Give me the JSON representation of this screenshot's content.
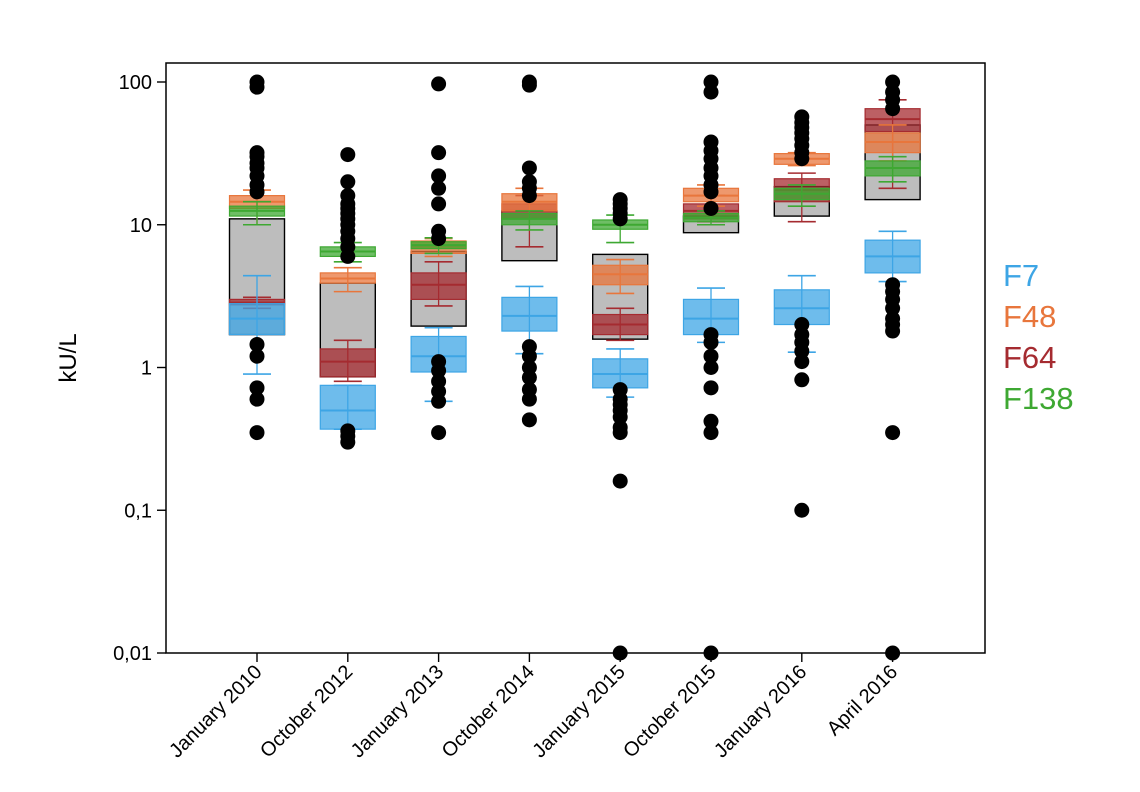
{
  "chart_data": {
    "type": "box",
    "ylabel": "kU/L",
    "xlabel": "",
    "yscale": "log",
    "ylim": [
      0.01,
      130
    ],
    "yticks": [
      0.01,
      0.1,
      1,
      10,
      100
    ],
    "ytick_labels": [
      "0,01",
      "0,1",
      "1",
      "10",
      "100"
    ],
    "categories": [
      "January 2010",
      "October 2012",
      "January 2013",
      "October 2014",
      "January 2015",
      "October 2015",
      "January 2016",
      "April 2016"
    ],
    "legend_position": "right",
    "total": {
      "whisker_low": [
        null,
        null,
        null,
        null,
        null,
        null,
        null,
        null
      ],
      "q1": [
        1.7,
        0.86,
        1.95,
        5.6,
        1.58,
        8.8,
        11.5,
        15
      ],
      "median": [
        null,
        null,
        null,
        null,
        null,
        null,
        null,
        null
      ],
      "q3": [
        11,
        3.9,
        6.5,
        12.5,
        6.2,
        11.5,
        18.5,
        50
      ],
      "whisker_high": [
        null,
        null,
        null,
        null,
        null,
        null,
        null,
        null
      ],
      "outliers": [
        [
          0.35,
          0.6,
          0.72,
          1.2,
          1.45,
          17,
          19,
          22,
          25,
          27,
          30,
          32,
          92,
          100
        ],
        [
          0.3,
          0.33,
          0.36,
          6,
          7,
          8,
          9,
          10,
          11,
          12,
          13,
          14,
          16,
          20,
          31
        ],
        [
          0.35,
          0.58,
          0.68,
          0.8,
          0.95,
          1.1,
          8,
          9,
          14,
          18,
          22,
          32,
          97
        ],
        [
          0.43,
          0.6,
          0.7,
          0.85,
          1,
          1.2,
          1.4,
          16,
          18,
          20,
          25,
          95,
          100
        ],
        [
          0.01,
          0.16,
          0.35,
          0.38,
          0.45,
          0.5,
          0.55,
          0.6,
          0.7,
          11,
          12,
          13,
          14,
          15
        ],
        [
          0.01,
          0.35,
          0.42,
          0.72,
          1,
          1.2,
          1.5,
          1.7,
          13,
          17,
          19,
          22,
          25,
          29,
          33,
          38,
          85,
          100
        ],
        [
          0.1,
          0.82,
          1.1,
          1.3,
          1.5,
          1.7,
          2,
          29,
          32,
          36,
          40,
          44,
          48,
          52,
          57
        ],
        [
          0.01,
          0.35,
          1.8,
          2,
          2.2,
          2.6,
          3,
          3.4,
          3.8,
          65,
          75,
          85,
          100
        ]
      ]
    },
    "series": [
      {
        "name": "F7",
        "color": "#3da5e5",
        "q1": [
          1.7,
          0.37,
          0.93,
          1.8,
          0.72,
          1.7,
          2,
          4.6
        ],
        "median": [
          2.2,
          0.5,
          1.2,
          2.3,
          0.9,
          2.2,
          2.6,
          6
        ],
        "q3": [
          2.8,
          0.75,
          1.65,
          3.1,
          1.15,
          3,
          3.5,
          7.8
        ],
        "whisker_low": [
          0.9,
          0.37,
          0.58,
          1.25,
          0.62,
          1.5,
          1.28,
          4
        ],
        "whisker_high": [
          4.4,
          0.75,
          1.9,
          3.7,
          1.35,
          3.6,
          4.4,
          9
        ]
      },
      {
        "name": "F48",
        "color": "#e8763c",
        "q1": [
          13,
          3.9,
          6.3,
          12.5,
          3.8,
          14.5,
          26.5,
          32
        ],
        "median": [
          14.5,
          4.2,
          7,
          14.5,
          4.5,
          16,
          29,
          38
        ],
        "q3": [
          16,
          4.6,
          7.7,
          16.5,
          5.2,
          18,
          31.5,
          44
        ],
        "whisker_low": [
          10,
          3.4,
          6,
          11,
          3.3,
          13.5,
          26,
          28
        ],
        "whisker_high": [
          17.5,
          5,
          8,
          18,
          5.7,
          19,
          32,
          50
        ]
      },
      {
        "name": "F64",
        "color": "#a52b30",
        "q1": [
          2.75,
          0.86,
          3,
          11,
          1.7,
          11,
          14.5,
          45
        ],
        "median": [
          2.85,
          1.1,
          3.8,
          12.5,
          2,
          12.5,
          17.5,
          55
        ],
        "q3": [
          3,
          1.35,
          4.6,
          14,
          2.35,
          14,
          21,
          65
        ],
        "whisker_low": [
          2.6,
          0.8,
          2.7,
          7,
          1.55,
          10.5,
          10.5,
          18
        ],
        "whisker_high": [
          3.1,
          1.55,
          5.5,
          16,
          2.6,
          16,
          23,
          75
        ]
      },
      {
        "name": "F138",
        "color": "#3ea832",
        "q1": [
          11.5,
          6,
          6.8,
          10,
          9.3,
          10.5,
          15,
          22
        ],
        "median": [
          12.5,
          6.5,
          7.2,
          11,
          10,
          11.2,
          16.5,
          25
        ],
        "q3": [
          13.5,
          7,
          7.6,
          12,
          10.8,
          12,
          18,
          28
        ],
        "whisker_low": [
          10,
          5.5,
          6.3,
          9.2,
          7.5,
          10,
          13.5,
          20
        ],
        "whisker_high": [
          14.5,
          7.5,
          8.1,
          12.5,
          11.7,
          12.5,
          19,
          30
        ]
      }
    ]
  }
}
